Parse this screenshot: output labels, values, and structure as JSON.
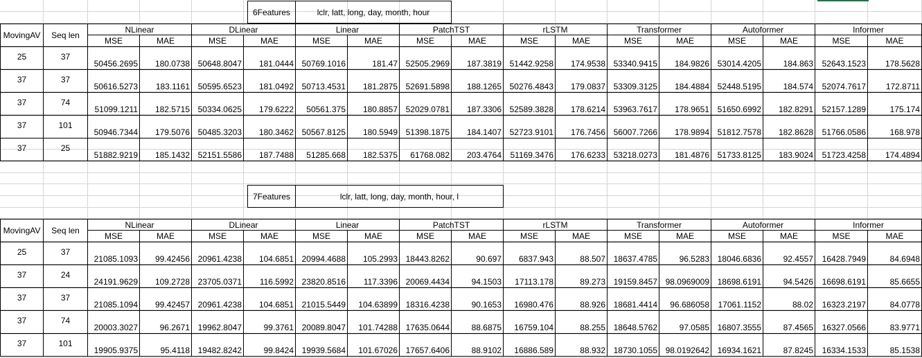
{
  "blocks": [
    {
      "label": "6Features",
      "features": "lclr, latt, long, day, month, hour",
      "header": {
        "moving_av": "MovingAV",
        "seq_len": "Seq len",
        "mse": "MSE",
        "mae": "MAE"
      },
      "models": [
        "NLinear",
        "DLinear",
        "Linear",
        "PatchTST",
        "rLSTM",
        "Transformer",
        "Autoformer",
        "Informer"
      ],
      "rows": [
        {
          "mav": "25",
          "seq": "37",
          "vals": [
            "50456.2695",
            "180.0738",
            "50648.8047",
            "181.0444",
            "50769.1016",
            "181.47",
            "52505.2969",
            "187.3819",
            "51442.9258",
            "174.9538",
            "53340.9415",
            "184.9826",
            "53014.4205",
            "184.863",
            "52643.1523",
            "178.5628"
          ]
        },
        {
          "mav": "37",
          "seq": "37",
          "vals": [
            "50616.5273",
            "183.1161",
            "50595.6523",
            "181.0492",
            "50713.4531",
            "181.2875",
            "52691.5898",
            "188.1265",
            "50276.4843",
            "179.0837",
            "53309.3125",
            "184.4884",
            "52448.5195",
            "184.574",
            "52074.7617",
            "172.8711"
          ]
        },
        {
          "mav": "37",
          "seq": "74",
          "vals": [
            "51099.1211",
            "182.5715",
            "50334.0625",
            "179.6222",
            "50561.375",
            "180.8857",
            "52029.0781",
            "187.3306",
            "52589.3828",
            "178.6214",
            "53963.7617",
            "178.9651",
            "51650.6992",
            "182.8291",
            "52157.1289",
            "175.174"
          ]
        },
        {
          "mav": "37",
          "seq": "101",
          "vals": [
            "50946.7344",
            "179.5076",
            "50485.3203",
            "180.3462",
            "50567.8125",
            "180.5949",
            "51398.1875",
            "184.1407",
            "52723.9101",
            "176.7456",
            "56007.7266",
            "178.9894",
            "51812.7578",
            "182.8628",
            "51766.0586",
            "168.978"
          ]
        },
        {
          "mav": "37",
          "seq": "25",
          "vals": [
            "51882.9219",
            "185.1432",
            "52151.5586",
            "187.7488",
            "51285.668",
            "182.5375",
            "61768.082",
            "203.4764",
            "51169.3476",
            "176.6233",
            "53218.0273",
            "181.4876",
            "51733.8125",
            "183.9024",
            "51723.4258",
            "174.4894"
          ]
        }
      ]
    },
    {
      "label": "7Features",
      "features": "lclr, latt, long, day, month, hour, l",
      "header": {
        "moving_av": "MovingAV",
        "seq_len": "Seq len",
        "mse": "MSE",
        "mae": "MAE"
      },
      "models": [
        "NLinear",
        "DLinear",
        "Linear",
        "PatchTST",
        "rLSTM",
        "Transformer",
        "Autoformer",
        "Informer"
      ],
      "rows": [
        {
          "mav": "25",
          "seq": "37",
          "vals": [
            "21085.1093",
            "99.42456",
            "20961.4238",
            "104.6851",
            "20994.4688",
            "105.2993",
            "18443.8262",
            "90.697",
            "6837.943",
            "88.507",
            "18637.4785",
            "96.5283",
            "18046.6836",
            "92.4557",
            "16428.7949",
            "84.6948"
          ]
        },
        {
          "mav": "37",
          "seq": "24",
          "vals": [
            "24191.9629",
            "109.2728",
            "23705.0371",
            "116.5992",
            "23820.8516",
            "117.3396",
            "20069.4434",
            "94.1503",
            "17113.178",
            "89.273",
            "19159.8457",
            "98.0969009",
            "18698.6191",
            "94.5426",
            "16698.6191",
            "85.6655"
          ]
        },
        {
          "mav": "37",
          "seq": "37",
          "vals": [
            "21085.1094",
            "99.42457",
            "20961.4238",
            "104.6851",
            "21015.5449",
            "104.63899",
            "18316.4238",
            "90.1653",
            "16980.476",
            "88.926",
            "18681.4414",
            "96.686058",
            "17061.1152",
            "88.02",
            "16323.2197",
            "84.0778"
          ]
        },
        {
          "mav": "37",
          "seq": "74",
          "vals": [
            "20003.3027",
            "96.2671",
            "19962.8047",
            "99.3761",
            "20089.8047",
            "101.74288",
            "17635.0644",
            "88.6875",
            "16759.104",
            "88.255",
            "18648.5762",
            "97.0585",
            "16807.3555",
            "87.4565",
            "16327.0566",
            "83.9771"
          ]
        },
        {
          "mav": "37",
          "seq": "101",
          "vals": [
            "19905.9375",
            "95.4118",
            "19482.8242",
            "99.8424",
            "19939.5684",
            "101.67026",
            "17657.6406",
            "88.9102",
            "16886.589",
            "88.932",
            "18730.1055",
            "98.0192642",
            "16934.1621",
            "87.8245",
            "16334.1533",
            "85.1538"
          ]
        }
      ]
    }
  ]
}
